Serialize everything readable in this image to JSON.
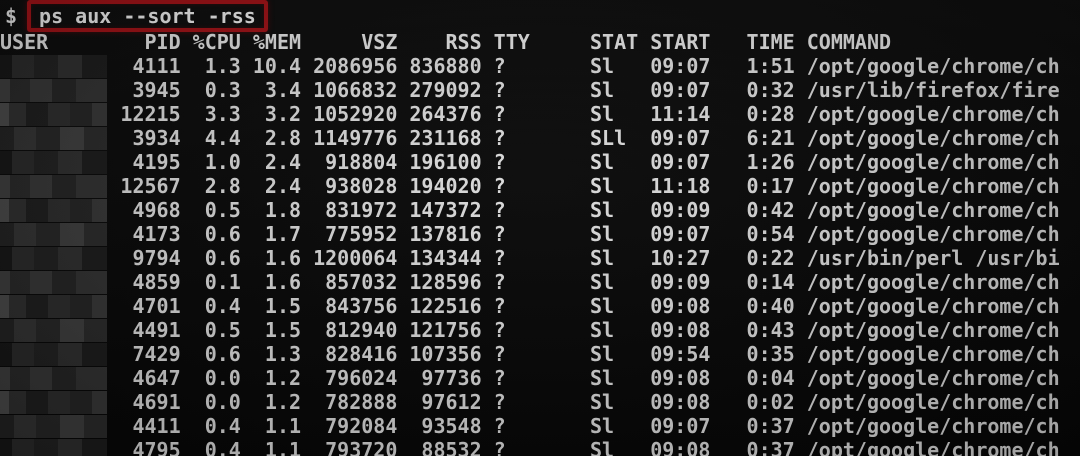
{
  "terminal": {
    "prompt": "$",
    "command": "ps aux --sort -rss",
    "accent_red": "#a11217",
    "background": "#0a0a0a",
    "foreground": "#dcdcdc",
    "user_column_redacted": true
  },
  "table": {
    "columns": [
      "USER",
      "PID",
      "%CPU",
      "%MEM",
      "VSZ",
      "RSS",
      "TTY",
      "STAT",
      "START",
      "TIME",
      "COMMAND"
    ],
    "rows": [
      {
        "pid": "4111",
        "cpu": "1.3",
        "mem": "10.4",
        "vsz": "2086956",
        "rss": "836880",
        "tty": "?",
        "stat": "Sl",
        "start": "09:07",
        "time": "1:51",
        "command": "/opt/google/chrome/ch"
      },
      {
        "pid": "3945",
        "cpu": "0.3",
        "mem": "3.4",
        "vsz": "1066832",
        "rss": "279092",
        "tty": "?",
        "stat": "Sl",
        "start": "09:07",
        "time": "0:32",
        "command": "/usr/lib/firefox/fire"
      },
      {
        "pid": "12215",
        "cpu": "3.3",
        "mem": "3.2",
        "vsz": "1052920",
        "rss": "264376",
        "tty": "?",
        "stat": "Sl",
        "start": "11:14",
        "time": "0:28",
        "command": "/opt/google/chrome/ch"
      },
      {
        "pid": "3934",
        "cpu": "4.4",
        "mem": "2.8",
        "vsz": "1149776",
        "rss": "231168",
        "tty": "?",
        "stat": "SLl",
        "start": "09:07",
        "time": "6:21",
        "command": "/opt/google/chrome/ch"
      },
      {
        "pid": "4195",
        "cpu": "1.0",
        "mem": "2.4",
        "vsz": "918804",
        "rss": "196100",
        "tty": "?",
        "stat": "Sl",
        "start": "09:07",
        "time": "1:26",
        "command": "/opt/google/chrome/ch"
      },
      {
        "pid": "12567",
        "cpu": "2.8",
        "mem": "2.4",
        "vsz": "938028",
        "rss": "194020",
        "tty": "?",
        "stat": "Sl",
        "start": "11:18",
        "time": "0:17",
        "command": "/opt/google/chrome/ch"
      },
      {
        "pid": "4968",
        "cpu": "0.5",
        "mem": "1.8",
        "vsz": "831972",
        "rss": "147372",
        "tty": "?",
        "stat": "Sl",
        "start": "09:09",
        "time": "0:42",
        "command": "/opt/google/chrome/ch"
      },
      {
        "pid": "4173",
        "cpu": "0.6",
        "mem": "1.7",
        "vsz": "775952",
        "rss": "137816",
        "tty": "?",
        "stat": "Sl",
        "start": "09:07",
        "time": "0:54",
        "command": "/opt/google/chrome/ch"
      },
      {
        "pid": "9794",
        "cpu": "0.6",
        "mem": "1.6",
        "vsz": "1200064",
        "rss": "134344",
        "tty": "?",
        "stat": "Sl",
        "start": "10:27",
        "time": "0:22",
        "command": "/usr/bin/perl /usr/bi"
      },
      {
        "pid": "4859",
        "cpu": "0.1",
        "mem": "1.6",
        "vsz": "857032",
        "rss": "128596",
        "tty": "?",
        "stat": "Sl",
        "start": "09:09",
        "time": "0:14",
        "command": "/opt/google/chrome/ch"
      },
      {
        "pid": "4701",
        "cpu": "0.4",
        "mem": "1.5",
        "vsz": "843756",
        "rss": "122516",
        "tty": "?",
        "stat": "Sl",
        "start": "09:08",
        "time": "0:40",
        "command": "/opt/google/chrome/ch"
      },
      {
        "pid": "4491",
        "cpu": "0.5",
        "mem": "1.5",
        "vsz": "812940",
        "rss": "121756",
        "tty": "?",
        "stat": "Sl",
        "start": "09:08",
        "time": "0:43",
        "command": "/opt/google/chrome/ch"
      },
      {
        "pid": "7429",
        "cpu": "0.6",
        "mem": "1.3",
        "vsz": "828416",
        "rss": "107356",
        "tty": "?",
        "stat": "Sl",
        "start": "09:54",
        "time": "0:35",
        "command": "/opt/google/chrome/ch"
      },
      {
        "pid": "4647",
        "cpu": "0.0",
        "mem": "1.2",
        "vsz": "796024",
        "rss": "97736",
        "tty": "?",
        "stat": "Sl",
        "start": "09:08",
        "time": "0:04",
        "command": "/opt/google/chrome/ch"
      },
      {
        "pid": "4691",
        "cpu": "0.0",
        "mem": "1.2",
        "vsz": "782888",
        "rss": "97612",
        "tty": "?",
        "stat": "Sl",
        "start": "09:08",
        "time": "0:02",
        "command": "/opt/google/chrome/ch"
      },
      {
        "pid": "4411",
        "cpu": "0.4",
        "mem": "1.1",
        "vsz": "792084",
        "rss": "93548",
        "tty": "?",
        "stat": "Sl",
        "start": "09:07",
        "time": "0:37",
        "command": "/opt/google/chrome/ch"
      },
      {
        "pid": "4795",
        "cpu": "0.4",
        "mem": "1.1",
        "vsz": "793720",
        "rss": "88532",
        "tty": "?",
        "stat": "Sl",
        "start": "09:08",
        "time": "0:37",
        "command": "/opt/google/chrome/ch"
      }
    ]
  }
}
